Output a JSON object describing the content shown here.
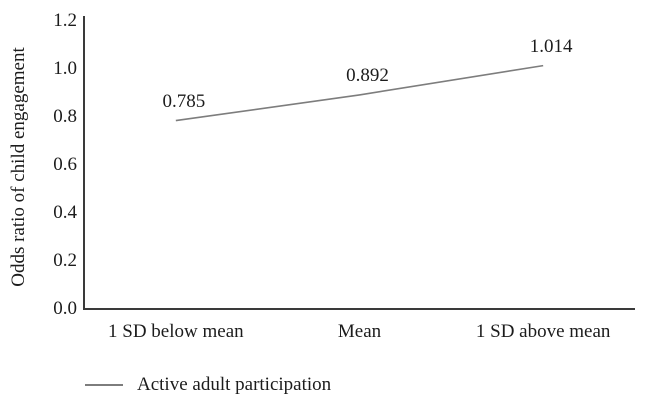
{
  "chart_data": {
    "type": "line",
    "title": "",
    "xlabel": "",
    "ylabel": "Odds ratio of child engagement",
    "categories": [
      "1 SD below mean",
      "Mean",
      "1 SD above mean"
    ],
    "series": [
      {
        "name": "Active adult participation",
        "values": [
          0.785,
          0.892,
          1.014
        ]
      }
    ],
    "value_labels": [
      "0.785",
      "0.892",
      "1.014"
    ],
    "yticks": [
      "0.0",
      "0.2",
      "0.4",
      "0.6",
      "0.8",
      "1.0",
      "1.2"
    ],
    "ylim": [
      0,
      1.2
    ],
    "grid": false,
    "legend_position": "bottom-left",
    "colors": {
      "line": "#7d7d7d",
      "axis": "#3a3a3a",
      "text": "#1c1c1c"
    }
  }
}
